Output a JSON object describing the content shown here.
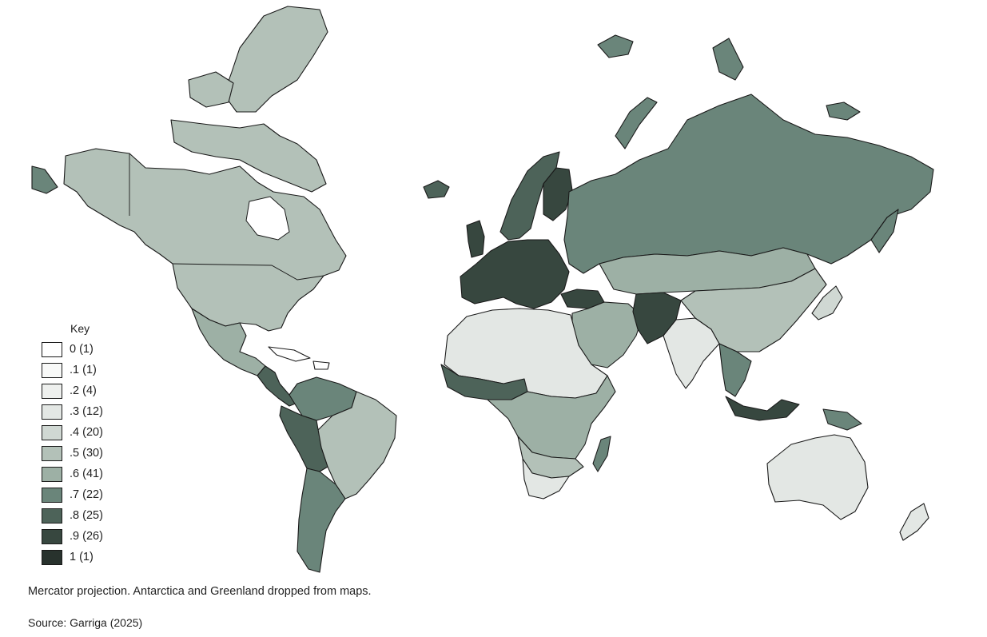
{
  "legend": {
    "title": "Key",
    "items": [
      {
        "label": "0 (1)",
        "color": "#ffffff"
      },
      {
        "label": ".1 (1)",
        "color": "#f8f9f8"
      },
      {
        "label": ".2 (4)",
        "color": "#eef0ee"
      },
      {
        "label": ".3 (12)",
        "color": "#e3e7e4"
      },
      {
        "label": ".4 (20)",
        "color": "#d0d8d3"
      },
      {
        "label": ".5 (30)",
        "color": "#b3c1b8"
      },
      {
        "label": ".6 (41)",
        "color": "#9db0a5"
      },
      {
        "label": ".7 (22)",
        "color": "#6a857a"
      },
      {
        "label": ".8 (25)",
        "color": "#4d6359"
      },
      {
        "label": ".9 (26)",
        "color": "#37473f"
      },
      {
        "label": "1 (1)",
        "color": "#28322d"
      }
    ]
  },
  "note": "Mercator projection. Antarctica and Greenland dropped from maps.",
  "source": "Source: Garriga (2025)",
  "regions": {
    "north_america": "#b3c1b8",
    "canada_islands": "#b3c1b8",
    "mexico": "#9db0a5",
    "central_america": "#4d6359",
    "south_america_east": "#b3c1b8",
    "colombia_venezuela": "#6a857a",
    "peru_bolivia": "#4d6359",
    "argentina_chile": "#6a857a",
    "iceland": "#4d6359",
    "western_europe": "#37473f",
    "scandinavia": "#4d6359",
    "finland": "#37473f",
    "russia": "#6a857a",
    "kazakhstan_mongolia": "#9db0a5",
    "china": "#b3c1b8",
    "india": "#e3e7e4",
    "afghanistan_pakistan": "#37473f",
    "middle_east": "#9db0a5",
    "turkey": "#37473f",
    "north_africa": "#e3e7e4",
    "sahel": "#4d6359",
    "central_africa": "#9db0a5",
    "southern_africa": "#b3c1b8",
    "south_africa": "#e3e7e4",
    "madagascar": "#6a857a",
    "southeast_asia": "#6a857a",
    "indonesia": "#37473f",
    "japan": "#d0d8d3",
    "australia": "#e3e7e4",
    "new_zealand": "#e3e7e4",
    "svalbard_arctic": "#6a857a",
    "caribbean": "#ffffff"
  }
}
